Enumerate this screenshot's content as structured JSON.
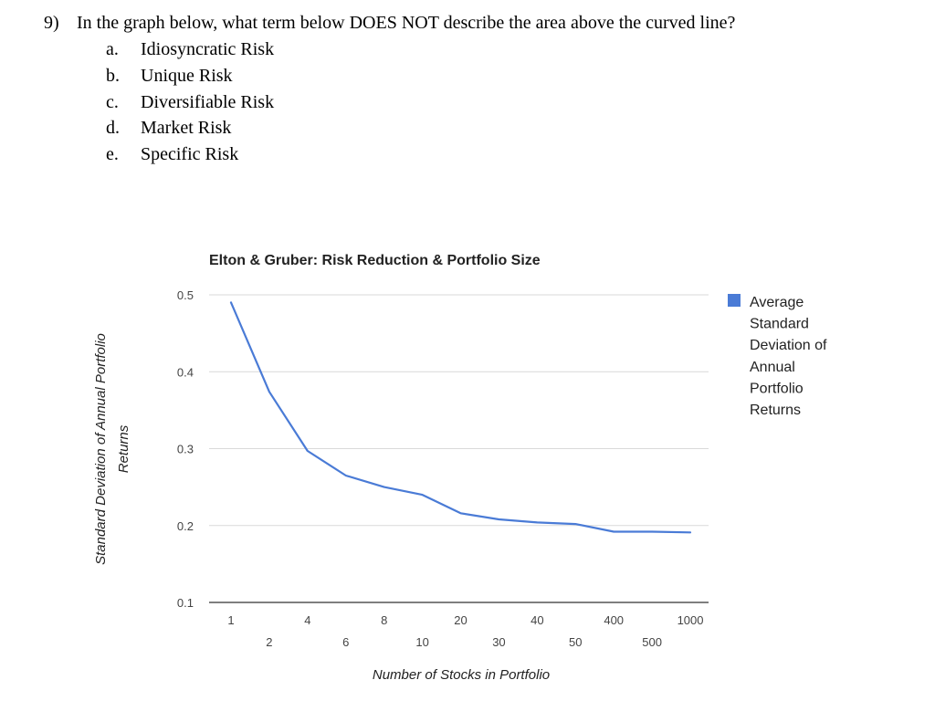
{
  "question": {
    "number": "9)",
    "text": "In the graph below, what term below DOES NOT describe the area above the curved line?",
    "options": [
      {
        "letter": "a.",
        "text": "Idiosyncratic Risk"
      },
      {
        "letter": "b.",
        "text": "Unique Risk"
      },
      {
        "letter": "c.",
        "text": "Diversifiable Risk"
      },
      {
        "letter": "d.",
        "text": "Market Risk"
      },
      {
        "letter": "e.",
        "text": "Specific Risk"
      }
    ]
  },
  "chart_data": {
    "type": "line",
    "title": "Elton & Gruber: Risk Reduction & Portfolio Size",
    "xlabel": "Number of Stocks in Portfolio",
    "ylabel_lines": [
      "Standard Deviation of Annual Portfolio",
      "Returns"
    ],
    "categories": [
      "1",
      "2",
      "4",
      "6",
      "8",
      "10",
      "20",
      "30",
      "40",
      "50",
      "400",
      "500",
      "1000"
    ],
    "series": [
      {
        "name": "Average Standard Deviation of Annual Portfolio Returns",
        "legend_lines": [
          "Average",
          "Standard",
          "Deviation of",
          "Annual",
          "Portfolio",
          "Returns"
        ],
        "color": "#4a7bd6",
        "values": [
          0.49,
          0.374,
          0.297,
          0.265,
          0.25,
          0.24,
          0.216,
          0.208,
          0.204,
          0.202,
          0.192,
          0.192,
          0.191
        ]
      }
    ],
    "yticks": [
      "0.1",
      "0.2",
      "0.3",
      "0.4",
      "0.5"
    ],
    "ylim": [
      0.1,
      0.5
    ],
    "grid": true,
    "legend_position": "right"
  }
}
